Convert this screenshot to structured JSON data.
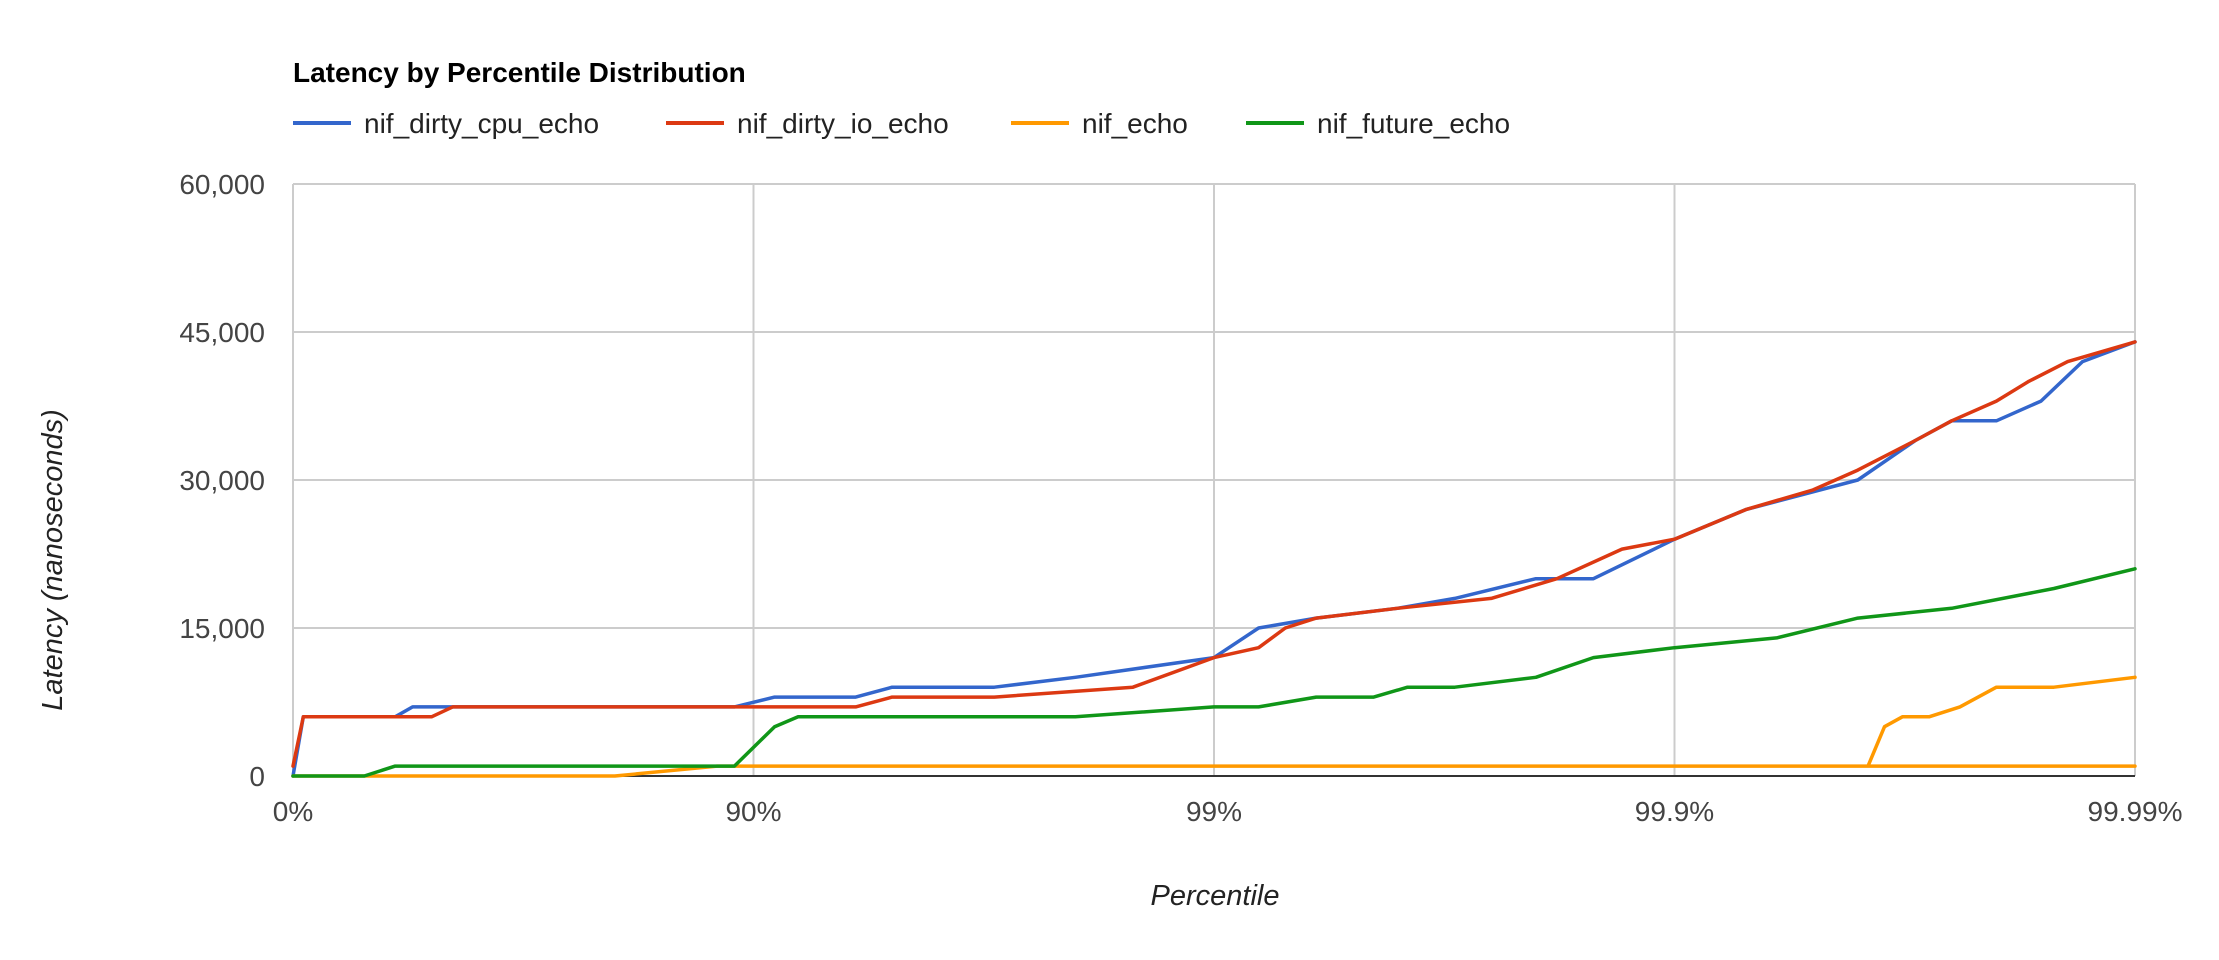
{
  "chart_data": {
    "type": "line",
    "title": "Latency by Percentile Distribution",
    "xlabel": "Percentile",
    "ylabel": "Latency (nanoseconds)",
    "x_scale": "percentile-log (1/(1-p))",
    "x_ticks": [
      "0%",
      "90%",
      "99%",
      "99.9%",
      "99.99%"
    ],
    "y_ticks": [
      "0",
      "15,000",
      "30,000",
      "45,000",
      "60,000"
    ],
    "ylim": [
      0,
      60000
    ],
    "grid": true,
    "legend_position": "top",
    "x_percentiles": [
      0,
      25,
      50,
      70,
      80,
      90,
      95,
      98,
      99,
      99.5,
      99.8,
      99.9,
      99.95,
      99.97,
      99.98,
      99.99
    ],
    "series": [
      {
        "name": "nif_dirty_cpu_echo",
        "color": "#3366cc",
        "points": [
          [
            0,
            0
          ],
          [
            5,
            6000
          ],
          [
            40,
            6000
          ],
          [
            45,
            7000
          ],
          [
            65,
            7000
          ],
          [
            70,
            7000
          ],
          [
            89,
            7000
          ],
          [
            91,
            8000
          ],
          [
            94,
            8000
          ],
          [
            95,
            9000
          ],
          [
            97,
            9000
          ],
          [
            98,
            10000
          ],
          [
            99,
            12000
          ],
          [
            99.2,
            15000
          ],
          [
            99.4,
            16000
          ],
          [
            99.6,
            17000
          ],
          [
            99.7,
            18000
          ],
          [
            99.8,
            20000
          ],
          [
            99.85,
            20000
          ],
          [
            99.9,
            24000
          ],
          [
            99.93,
            27000
          ],
          [
            99.96,
            30000
          ],
          [
            99.97,
            34000
          ],
          [
            99.975,
            36000
          ],
          [
            99.98,
            36000
          ],
          [
            99.984,
            38000
          ],
          [
            99.987,
            42000
          ],
          [
            99.99,
            44000
          ]
        ]
      },
      {
        "name": "nif_dirty_io_echo",
        "color": "#dc3912",
        "points": [
          [
            0,
            1000
          ],
          [
            5,
            6000
          ],
          [
            50,
            6000
          ],
          [
            55,
            7000
          ],
          [
            70,
            7000
          ],
          [
            89,
            7000
          ],
          [
            94,
            7000
          ],
          [
            95,
            8000
          ],
          [
            97,
            8000
          ],
          [
            98.5,
            9000
          ],
          [
            99,
            12000
          ],
          [
            99.2,
            13000
          ],
          [
            99.3,
            15000
          ],
          [
            99.4,
            16000
          ],
          [
            99.6,
            17000
          ],
          [
            99.75,
            18000
          ],
          [
            99.82,
            20000
          ],
          [
            99.87,
            23000
          ],
          [
            99.9,
            24000
          ],
          [
            99.93,
            27000
          ],
          [
            99.95,
            29000
          ],
          [
            99.96,
            31000
          ],
          [
            99.97,
            34000
          ],
          [
            99.975,
            36000
          ],
          [
            99.98,
            38000
          ],
          [
            99.983,
            40000
          ],
          [
            99.986,
            42000
          ],
          [
            99.99,
            44000
          ]
        ]
      },
      {
        "name": "nif_echo",
        "color": "#ff9900",
        "points": [
          [
            0,
            0
          ],
          [
            80,
            0
          ],
          [
            88,
            1000
          ],
          [
            99.99,
            1000
          ],
          [
            99.962,
            1000
          ],
          [
            99.965,
            5000
          ],
          [
            99.968,
            6000
          ],
          [
            99.972,
            6000
          ],
          [
            99.976,
            7000
          ],
          [
            99.98,
            9000
          ],
          [
            99.985,
            9000
          ],
          [
            99.99,
            10000
          ]
        ]
      },
      {
        "name": "nif_future_echo",
        "color": "#109618",
        "points": [
          [
            0,
            0
          ],
          [
            30,
            0
          ],
          [
            40,
            1000
          ],
          [
            89,
            1000
          ],
          [
            91,
            5000
          ],
          [
            92,
            6000
          ],
          [
            98,
            6000
          ],
          [
            99,
            7000
          ],
          [
            99.2,
            7000
          ],
          [
            99.4,
            8000
          ],
          [
            99.55,
            8000
          ],
          [
            99.62,
            9000
          ],
          [
            99.7,
            9000
          ],
          [
            99.8,
            10000
          ],
          [
            99.85,
            12000
          ],
          [
            99.9,
            13000
          ],
          [
            99.94,
            14000
          ],
          [
            99.96,
            16000
          ],
          [
            99.975,
            17000
          ],
          [
            99.985,
            19000
          ],
          [
            99.99,
            21000
          ]
        ]
      }
    ]
  }
}
